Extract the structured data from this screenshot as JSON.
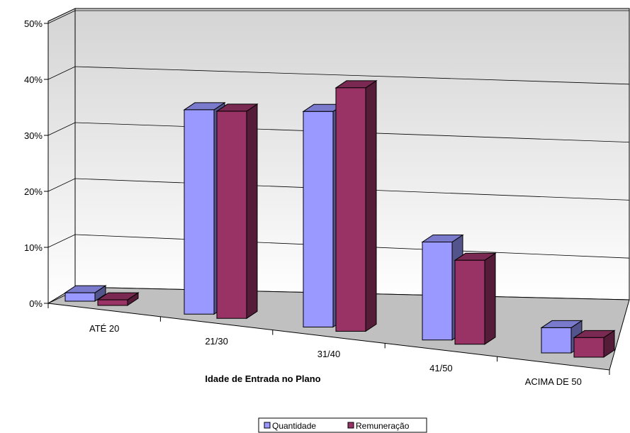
{
  "chart_data": {
    "type": "bar",
    "style": "3d-clustered-column",
    "title": "",
    "xlabel": "Idade de Entrada no Plano",
    "ylabel": "",
    "ylim": [
      0,
      50
    ],
    "y_ticks": [
      "0%",
      "10%",
      "20%",
      "30%",
      "40%",
      "50%"
    ],
    "categories": [
      "ATÉ 20",
      "21/30",
      "31/40",
      "41/50",
      "ACIMA DE 50"
    ],
    "series": [
      {
        "name": "Quantidade",
        "color": "#9999ff",
        "values": [
          1.5,
          36.5,
          38.5,
          17.5,
          4.5
        ]
      },
      {
        "name": "Remuneração",
        "color": "#993366",
        "values": [
          1.0,
          37.0,
          43.5,
          15.0,
          3.5
        ]
      }
    ],
    "grid": true,
    "legend": "bottom"
  }
}
